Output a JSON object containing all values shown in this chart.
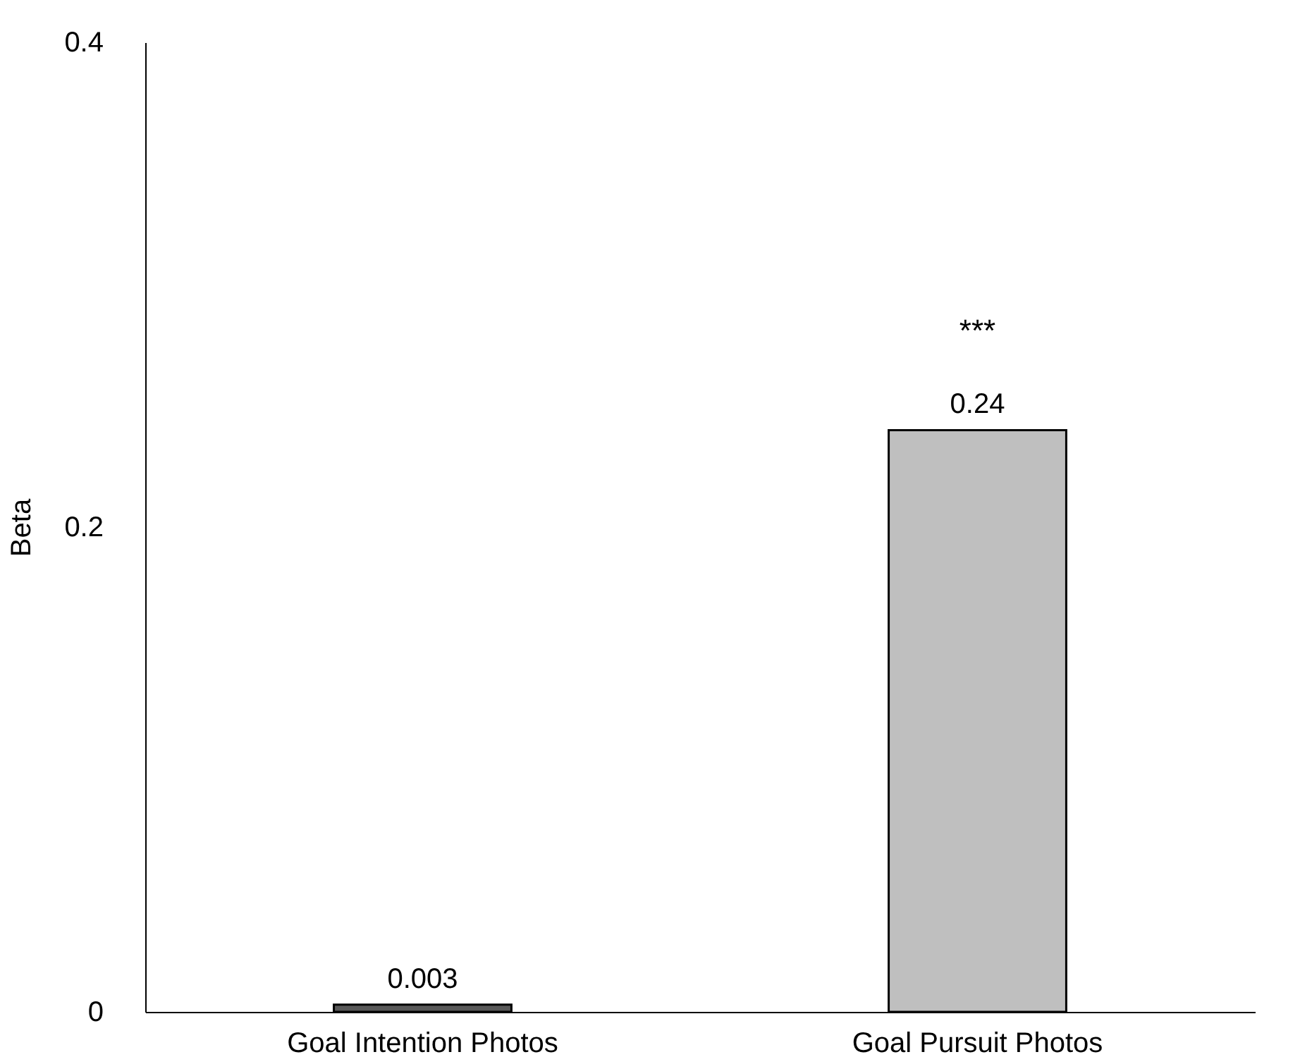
{
  "chart_data": {
    "type": "bar",
    "ylabel": "Beta",
    "categories": [
      "Goal Intention Photos",
      "Goal Pursuit Photos"
    ],
    "values": [
      0.003,
      0.24
    ],
    "colors": [
      "#595959",
      "#bfbfbf"
    ],
    "ylim": [
      0,
      0.4
    ],
    "yticks": [
      0,
      0.2,
      0.4
    ],
    "grid": false,
    "data_labels": true,
    "annotations": [
      "***"
    ]
  }
}
